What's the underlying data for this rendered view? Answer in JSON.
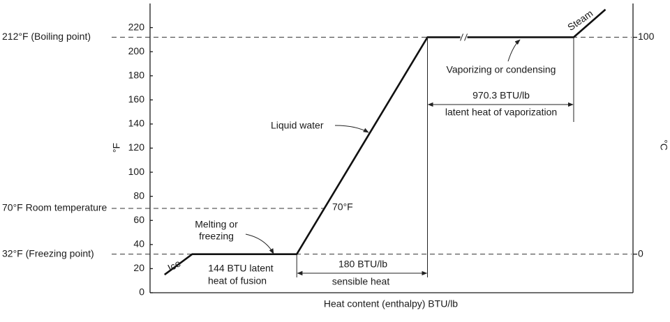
{
  "chart_data": {
    "type": "line",
    "xlabel": "Heat content (enthalpy) BTU/lb",
    "ylabel": "°F",
    "y2label": "°C",
    "x": [
      -38,
      0,
      144,
      324,
      1294.3,
      1338
    ],
    "values": [
      15,
      32,
      32,
      212,
      212,
      235
    ],
    "color": "#111111",
    "xlim": [
      -58,
      1376
    ],
    "x_break": [
      374,
      1143
    ],
    "ylim": [
      0,
      240
    ],
    "yticks": [
      0,
      20,
      40,
      60,
      80,
      100,
      120,
      140,
      160,
      180,
      200,
      220
    ],
    "y2lim": [
      -17.8,
      115.6
    ],
    "y2ticks": [
      0,
      100
    ],
    "hlines": [
      {
        "value": 212,
        "label": "212°F (Boiling point)"
      },
      {
        "value": 70,
        "label": "70°F Room temperature",
        "to_curve": true
      },
      {
        "value": 32,
        "label": "32°F (Freezing point)"
      }
    ],
    "annotations": [
      "Ice",
      "Steam",
      "Melting or",
      "freezing",
      "Liquid water",
      "70°F",
      "Vaporizing or condensing",
      "144 BTU latent",
      "heat of fusion",
      "180 BTU/lb",
      "sensible heat",
      "970.3 BTU/lb",
      "latent heat of vaporization"
    ]
  }
}
